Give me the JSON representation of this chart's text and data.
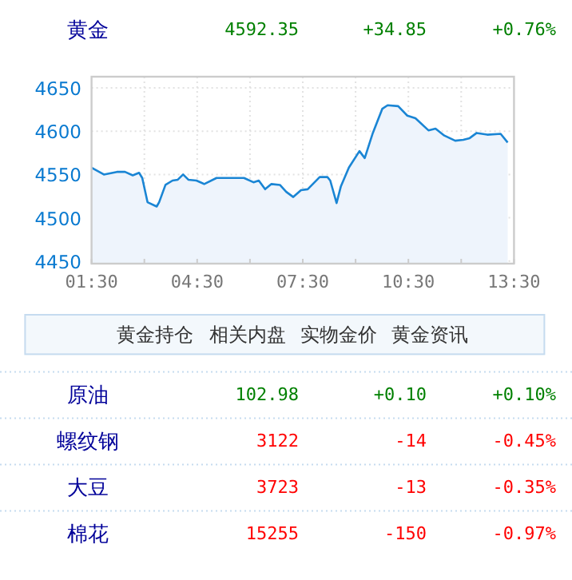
{
  "chart_data": {
    "type": "area",
    "title": "黄金",
    "annotations": [
      "4592.35",
      "+34.85",
      "+0.76%",
      "黄金持仓",
      "相关内盘",
      "实物金价",
      "黄金资讯",
      "原油",
      "102.98",
      "+0.10",
      "+0.10%",
      "螺纹钢",
      "3122",
      "-14",
      "-0.45%",
      "大豆",
      "3723",
      "-13",
      "-0.35%",
      "棉花",
      "15255",
      "-150",
      "-0.97%"
    ],
    "x": [
      1.5,
      1.85,
      2.22,
      2.45,
      2.67,
      2.85,
      2.94,
      3.09,
      3.35,
      3.42,
      3.6,
      3.8,
      3.95,
      4.1,
      4.25,
      4.48,
      4.7,
      5.05,
      5.83,
      6.1,
      6.25,
      6.43,
      6.61,
      6.85,
      7.03,
      7.23,
      7.45,
      7.64,
      7.98,
      8.2,
      8.28,
      8.46,
      8.58,
      8.81,
      9.11,
      9.26,
      9.49,
      9.76,
      9.91,
      10.21,
      10.47,
      10.7,
      11.07,
      11.27,
      11.52,
      11.83,
      12.06,
      12.24,
      12.44,
      12.74,
      13.12,
      13.32
    ],
    "values": [
      4558,
      4550,
      4553,
      4553,
      4549,
      4552,
      4546,
      4518,
      4513,
      4518,
      4538,
      4543,
      4544,
      4550,
      4544,
      4543,
      4539,
      4546,
      4546,
      4541,
      4543,
      4533,
      4539,
      4538,
      4530,
      4524,
      4532,
      4533,
      4547,
      4547,
      4543,
      4517,
      4536,
      4558,
      4577,
      4569,
      4598,
      4626,
      4630,
      4629,
      4618,
      4615,
      4601,
      4603,
      4595,
      4589,
      4590,
      4592,
      4598,
      4596,
      4597,
      4587
    ],
    "color": "#1a85d4",
    "xlim": [
      1.5,
      13.5
    ],
    "ylim": [
      4447,
      4663
    ],
    "xticks": [
      {
        "value": 1.5,
        "label": "01:30"
      },
      {
        "value": 3,
        "label": null
      },
      {
        "value": 4.5,
        "label": "04:30"
      },
      {
        "value": 6,
        "label": null
      },
      {
        "value": 7.5,
        "label": "07:30"
      },
      {
        "value": 9,
        "label": null
      },
      {
        "value": 10.5,
        "label": "10:30"
      },
      {
        "value": 12,
        "label": null
      },
      {
        "value": 13.5,
        "label": "13:30"
      }
    ],
    "yticks": [
      4450,
      4500,
      4550,
      4600,
      4650
    ],
    "grid": true
  }
}
